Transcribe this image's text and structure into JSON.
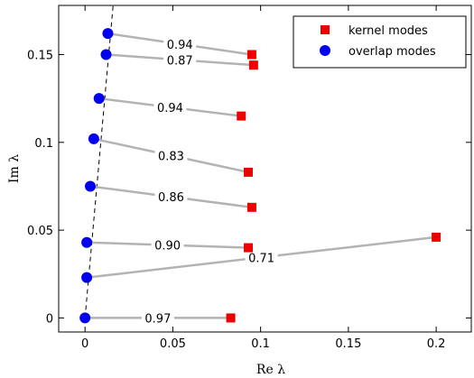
{
  "chart_data": {
    "type": "scatter",
    "xlabel": "Re λ",
    "ylabel": "Im λ",
    "xlim": [
      -0.015,
      0.22
    ],
    "ylim": [
      -0.008,
      0.178
    ],
    "x_ticks": [
      0,
      0.05,
      0.1,
      0.15,
      0.2
    ],
    "x_tick_labels": [
      "0",
      "0.05",
      "0.1",
      "0.15",
      "0.2"
    ],
    "y_ticks": [
      0,
      0.05,
      0.1,
      0.15
    ],
    "y_tick_labels": [
      "0",
      "0.05",
      "0.1",
      "0.15"
    ],
    "legend": {
      "position": "top-right",
      "entries": [
        "kernel modes",
        "overlap modes"
      ]
    },
    "colors": {
      "kernel": "#ee0000",
      "overlap": "#0000ee",
      "connector": "#b3b3b3"
    },
    "series": [
      {
        "name": "kernel modes",
        "marker": "square",
        "x": [
          0.083,
          0.2,
          0.093,
          0.095,
          0.093,
          0.089,
          0.096,
          0.095
        ],
        "y": [
          0.0,
          0.046,
          0.04,
          0.063,
          0.083,
          0.115,
          0.144,
          0.15
        ]
      },
      {
        "name": "overlap modes",
        "marker": "circle",
        "x": [
          0.0,
          0.001,
          0.001,
          0.003,
          0.005,
          0.008,
          0.012,
          0.013
        ],
        "y": [
          0.0,
          0.023,
          0.043,
          0.075,
          0.102,
          0.125,
          0.15,
          0.162
        ]
      }
    ],
    "pairs": [
      {
        "overlap_index": 0,
        "kernel_index": 0,
        "label": "0.97"
      },
      {
        "overlap_index": 1,
        "kernel_index": 1,
        "label": "0.71"
      },
      {
        "overlap_index": 2,
        "kernel_index": 2,
        "label": "0.90"
      },
      {
        "overlap_index": 3,
        "kernel_index": 3,
        "label": "0.86"
      },
      {
        "overlap_index": 4,
        "kernel_index": 4,
        "label": "0.83"
      },
      {
        "overlap_index": 5,
        "kernel_index": 5,
        "label": "0.94"
      },
      {
        "overlap_index": 6,
        "kernel_index": 6,
        "label": "0.87"
      },
      {
        "overlap_index": 7,
        "kernel_index": 7,
        "label": "0.94"
      }
    ],
    "trend_line": {
      "style": "dashed",
      "x": [
        0.0,
        0.016
      ],
      "y": [
        0.0,
        0.178
      ]
    }
  }
}
